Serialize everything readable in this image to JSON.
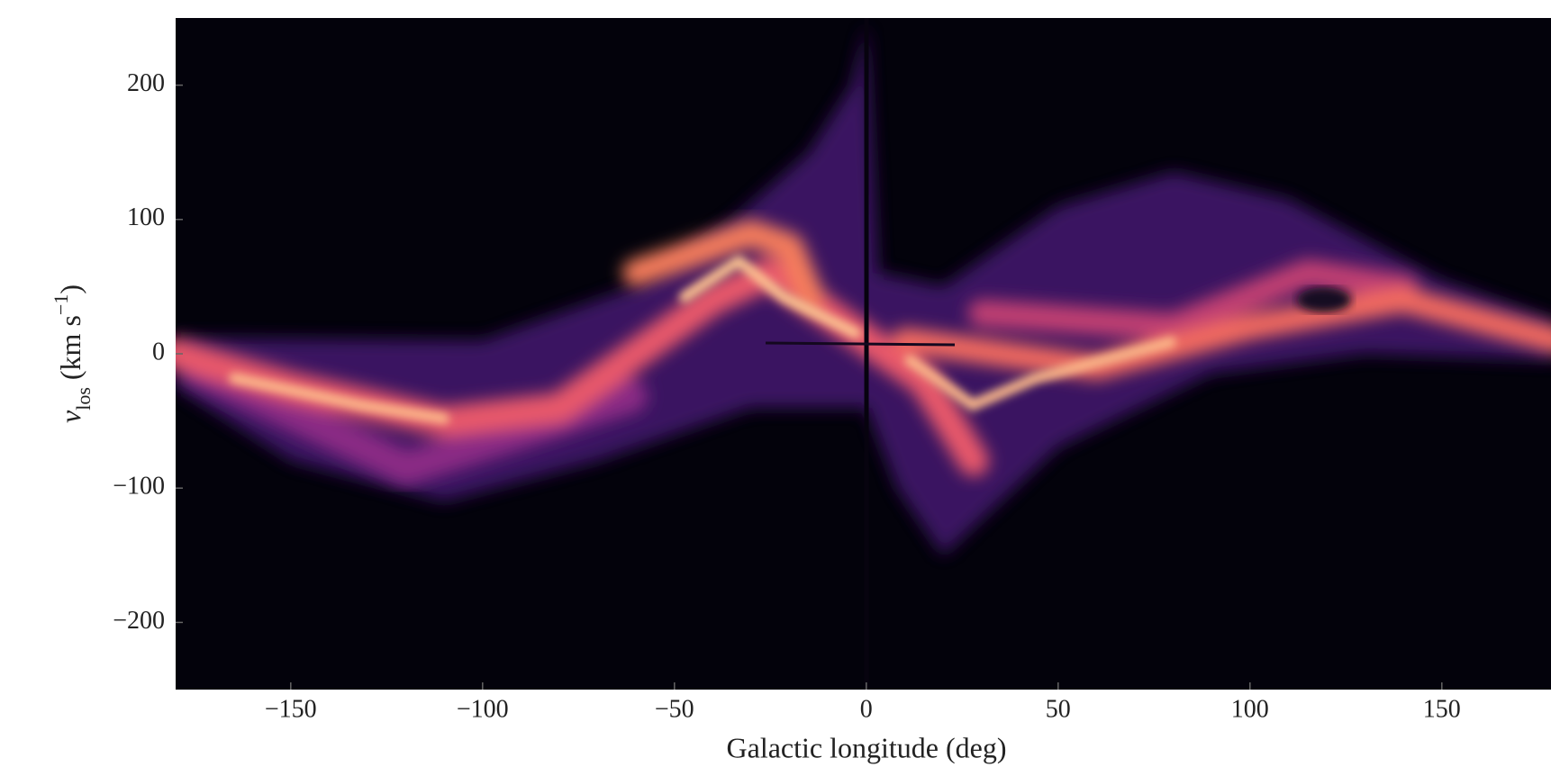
{
  "chart_data": {
    "type": "image",
    "xlabel": "Galactic longitude (deg)",
    "ylabel": [
      "v",
      "los",
      "(km s",
      "−1",
      ")"
    ],
    "xlim": [
      -180,
      180
    ],
    "ylim": [
      -250,
      250
    ],
    "xticks": [
      {
        "value": -150,
        "label": "−150"
      },
      {
        "value": -100,
        "label": "−100"
      },
      {
        "value": -50,
        "label": "−50"
      },
      0,
      50,
      100,
      150
    ],
    "yticks": [
      {
        "value": -200,
        "label": "−200"
      },
      {
        "value": -100,
        "label": "−100"
      },
      0,
      100,
      200
    ]
  }
}
